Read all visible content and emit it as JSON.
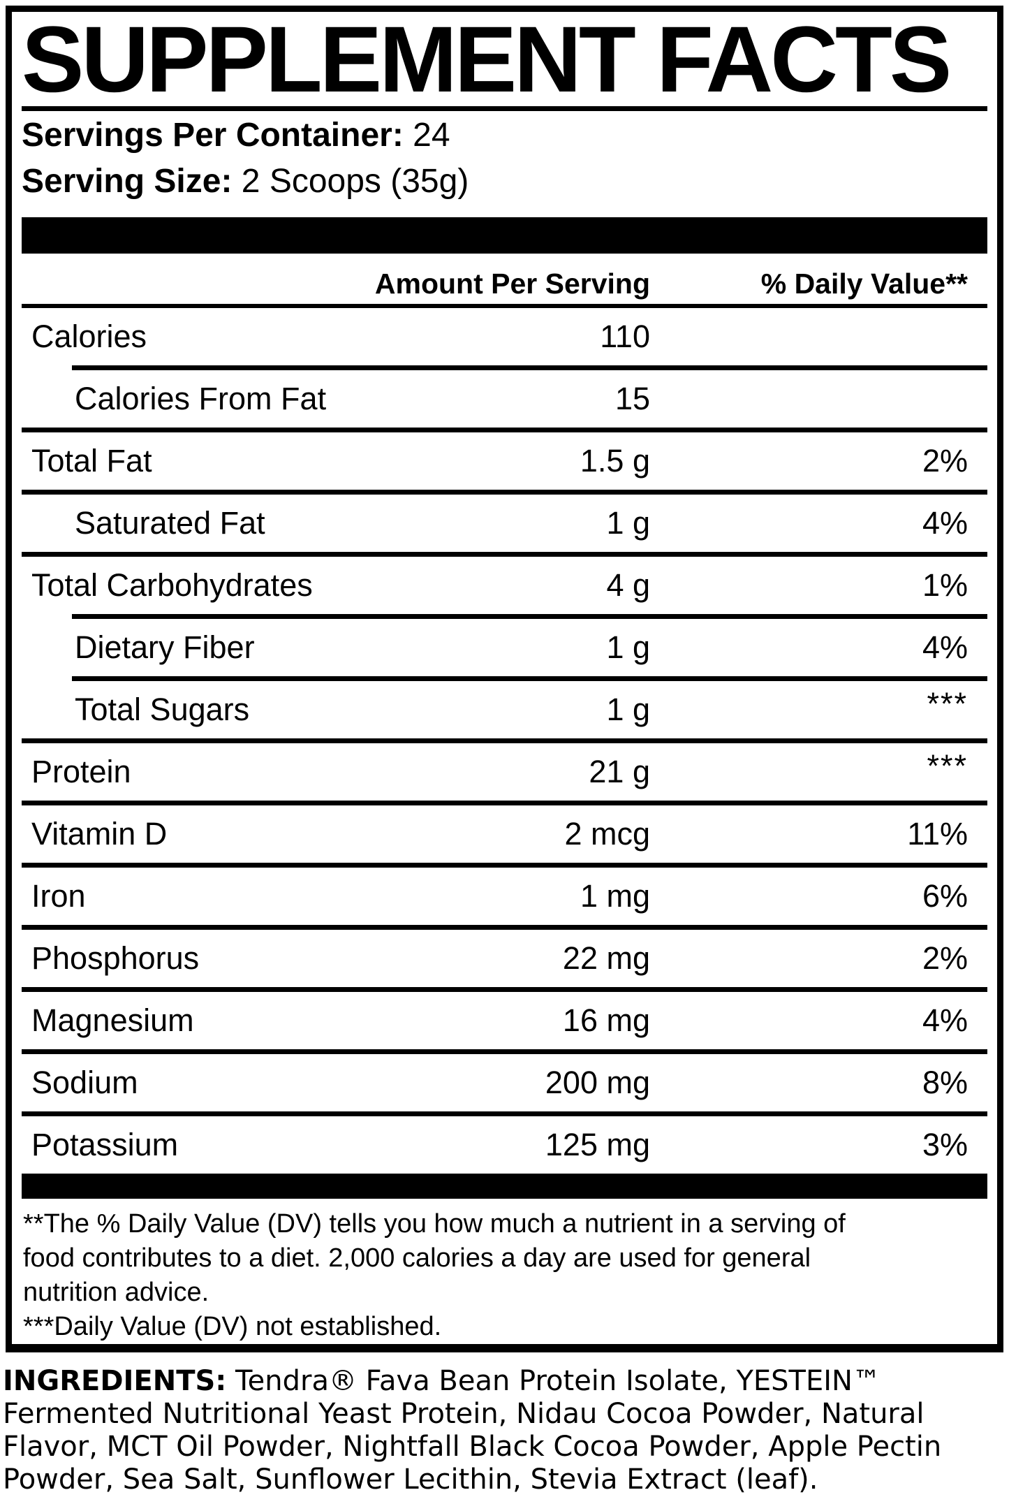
{
  "title": "SUPPLEMENT FACTS",
  "serving_info": {
    "servings_label": "Servings Per Container:",
    "servings_value": "24",
    "size_label": "Serving Size:",
    "size_value": "2 Scoops (35g)"
  },
  "table": {
    "amount_header": "Amount Per Serving",
    "dv_header": "% Daily Value**",
    "rows": [
      {
        "name": "Calories",
        "amount": "110",
        "dv": "",
        "indent": false,
        "rule_above": "none"
      },
      {
        "name": "Calories From Fat",
        "amount": "15",
        "dv": "",
        "indent": true,
        "rule_above": "indent"
      },
      {
        "name": "Total Fat",
        "amount": "1.5 g",
        "dv": "2%",
        "indent": false,
        "rule_above": "full"
      },
      {
        "name": "Saturated Fat",
        "amount": "1 g",
        "dv": "4%",
        "indent": true,
        "rule_above": "full"
      },
      {
        "name": "Total Carbohydrates",
        "amount": "4 g",
        "dv": "1%",
        "indent": false,
        "rule_above": "full"
      },
      {
        "name": "Dietary Fiber",
        "amount": "1 g",
        "dv": "4%",
        "indent": true,
        "rule_above": "indent"
      },
      {
        "name": "Total Sugars",
        "amount": "1 g",
        "dv": "***",
        "indent": true,
        "rule_above": "indent"
      },
      {
        "name": "Protein",
        "amount": "21 g",
        "dv": "***",
        "indent": false,
        "rule_above": "full"
      },
      {
        "name": "Vitamin D",
        "amount": "2 mcg",
        "dv": "11%",
        "indent": false,
        "rule_above": "full"
      },
      {
        "name": "Iron",
        "amount": "1 mg",
        "dv": "6%",
        "indent": false,
        "rule_above": "full"
      },
      {
        "name": "Phosphorus",
        "amount": "22 mg",
        "dv": "2%",
        "indent": false,
        "rule_above": "full"
      },
      {
        "name": "Magnesium",
        "amount": "16 mg",
        "dv": "4%",
        "indent": false,
        "rule_above": "full"
      },
      {
        "name": "Sodium",
        "amount": "200 mg",
        "dv": "8%",
        "indent": false,
        "rule_above": "full"
      },
      {
        "name": "Potassium",
        "amount": "125 mg",
        "dv": "3%",
        "indent": false,
        "rule_above": "full"
      }
    ]
  },
  "footnotes": {
    "lines": [
      "**The % Daily Value (DV) tells you how much a nutrient in a serving of",
      "food contributes to a diet. 2,000 calories a day are used for general",
      "nutrition advice.",
      "***Daily Value (DV) not established."
    ]
  },
  "ingredients": {
    "label": "INGREDIENTS:",
    "lines": [
      "Tendra® Fava Bean Protein Isolate, YESTEIN™",
      "Fermented Nutritional Yeast Protein, Nidau Cocoa Powder, Natural",
      "Flavor, MCT Oil Powder, Nightfall Black Cocoa Powder, Apple Pectin",
      "Powder, Sea Salt, Sunflower Lecithin, Stevia Extract (leaf)."
    ]
  },
  "colors": {
    "ink": "#000000",
    "paper": "#ffffff"
  }
}
